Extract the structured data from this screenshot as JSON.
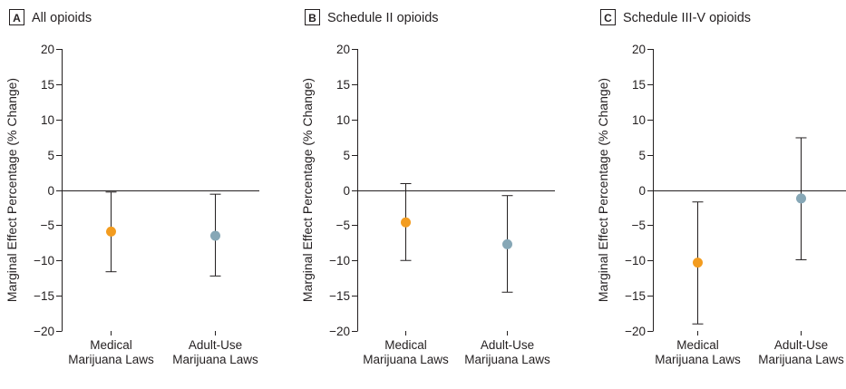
{
  "chart_data": [
    {
      "type": "scatter",
      "panel_letter": "A",
      "title": "All opioids",
      "ylabel": "Marginal Effect Percentage (% Change)",
      "xlabel": "",
      "ylim": [
        -20,
        20
      ],
      "yticks": [
        20,
        15,
        10,
        5,
        0,
        -5,
        -10,
        -15,
        -20
      ],
      "grid": false,
      "categories": [
        [
          "Medical",
          "Marijuana Laws"
        ],
        [
          "Adult-Use",
          "Marijuana Laws"
        ]
      ],
      "points": [
        {
          "estimate": -5.9,
          "lower": -11.6,
          "upper": -0.3,
          "color": "#f39c1f"
        },
        {
          "estimate": -6.5,
          "lower": -12.2,
          "upper": -0.6,
          "color": "#86a7b6"
        }
      ]
    },
    {
      "type": "scatter",
      "panel_letter": "B",
      "title": "Schedule II opioids",
      "ylabel": "Marginal Effect Percentage (% Change)",
      "xlabel": "",
      "ylim": [
        -20,
        20
      ],
      "yticks": [
        20,
        15,
        10,
        5,
        0,
        -5,
        -10,
        -15,
        -20
      ],
      "grid": false,
      "categories": [
        [
          "Medical",
          "Marijuana Laws"
        ],
        [
          "Adult-Use",
          "Marijuana Laws"
        ]
      ],
      "points": [
        {
          "estimate": -4.6,
          "lower": -10.0,
          "upper": 0.9,
          "color": "#f39c1f"
        },
        {
          "estimate": -7.7,
          "lower": -14.5,
          "upper": -0.8,
          "color": "#86a7b6"
        }
      ]
    },
    {
      "type": "scatter",
      "panel_letter": "C",
      "title": "Schedule III-V opioids",
      "ylabel": "Marginal Effect Percentage (% Change)",
      "xlabel": "",
      "ylim": [
        -20,
        20
      ],
      "yticks": [
        20,
        15,
        10,
        5,
        0,
        -5,
        -10,
        -15,
        -20
      ],
      "grid": false,
      "categories": [
        [
          "Medical",
          "Marijuana Laws"
        ],
        [
          "Adult-Use",
          "Marijuana Laws"
        ]
      ],
      "points": [
        {
          "estimate": -10.3,
          "lower": -19.0,
          "upper": -1.7,
          "color": "#f39c1f"
        },
        {
          "estimate": -1.2,
          "lower": -9.9,
          "upper": 7.4,
          "color": "#86a7b6"
        }
      ]
    }
  ]
}
